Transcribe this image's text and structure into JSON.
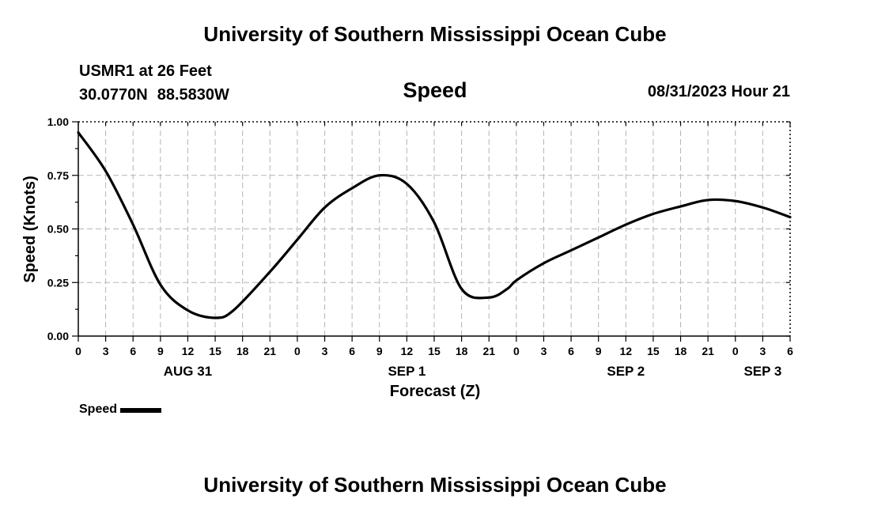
{
  "header": {
    "title_top": "University of Southern Mississippi Ocean Cube",
    "title_bottom": "University of Southern Mississippi Ocean Cube",
    "station": "USMR1 at 26 Feet",
    "lat": "30.0770N",
    "lon": "88.5830W",
    "issued": "08/31/2023 Hour 21"
  },
  "chart_data": {
    "type": "line",
    "title": "Speed",
    "xlabel": "Forecast (Z)",
    "ylabel": "Speed (Knots)",
    "ylim": [
      0,
      1.0
    ],
    "xlim_hours": [
      0,
      78
    ],
    "grid": true,
    "x_tick_hours": [
      0,
      3,
      6,
      9,
      12,
      15,
      18,
      21,
      24,
      27,
      30,
      33,
      36,
      39,
      42,
      45,
      48,
      51,
      54,
      57,
      60,
      63,
      66,
      69,
      72,
      75,
      78
    ],
    "x_tick_labels": [
      "0",
      "3",
      "6",
      "9",
      "12",
      "15",
      "18",
      "21",
      "0",
      "3",
      "6",
      "9",
      "12",
      "15",
      "18",
      "21",
      "0",
      "3",
      "6",
      "9",
      "12",
      "15",
      "18",
      "21",
      "0",
      "3",
      "6"
    ],
    "y_ticks": [
      0.0,
      0.25,
      0.5,
      0.75,
      1.0
    ],
    "y_tick_labels": [
      "0.00",
      "0.25",
      "0.50",
      "0.75",
      "1.00"
    ],
    "day_labels": [
      {
        "label": "AUG 31",
        "hour": 12
      },
      {
        "label": "SEP 1",
        "hour": 36
      },
      {
        "label": "SEP 2",
        "hour": 60
      },
      {
        "label": "SEP 3",
        "hour": 75
      }
    ],
    "series": [
      {
        "name": "Speed",
        "color": "#000000",
        "x": [
          0,
          3,
          6,
          9,
          12,
          15,
          17,
          21,
          24,
          27,
          30,
          33,
          36,
          39,
          42,
          45,
          47,
          48,
          51,
          54,
          57,
          60,
          63,
          66,
          69,
          72,
          75,
          78
        ],
        "y": [
          0.95,
          0.77,
          0.52,
          0.24,
          0.12,
          0.085,
          0.12,
          0.3,
          0.45,
          0.6,
          0.69,
          0.75,
          0.71,
          0.53,
          0.22,
          0.18,
          0.22,
          0.26,
          0.34,
          0.4,
          0.46,
          0.52,
          0.57,
          0.605,
          0.635,
          0.63,
          0.6,
          0.555
        ]
      }
    ],
    "legend": {
      "label": "Speed",
      "position": "bottom-left"
    }
  }
}
